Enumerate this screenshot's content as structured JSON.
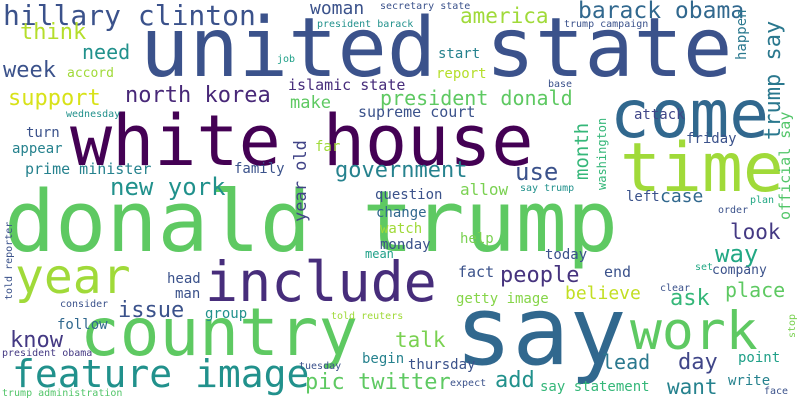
{
  "words": [
    {
      "text": "donald trump",
      "color": "#5ec962"
    },
    {
      "text": "united state",
      "color": "#3b528b"
    },
    {
      "text": "white house",
      "color": "#440154"
    },
    {
      "text": "say",
      "color": "#31688e"
    },
    {
      "text": "country",
      "color": "#5ec962"
    },
    {
      "text": "include",
      "color": "#472d7b"
    },
    {
      "text": "come",
      "color": "#31688e"
    },
    {
      "text": "time",
      "color": "#a0da39"
    },
    {
      "text": "work",
      "color": "#5ec962"
    },
    {
      "text": "year",
      "color": "#a0da39"
    },
    {
      "text": "feature image",
      "color": "#21918c"
    },
    {
      "text": "hillary clinton",
      "color": "#3b528b"
    },
    {
      "text": "barack obama",
      "color": "#31688e"
    },
    {
      "text": "america",
      "color": "#a0da39"
    },
    {
      "text": "woman",
      "color": "#3b528b"
    },
    {
      "text": "think",
      "color": "#b5de2b"
    },
    {
      "text": "need",
      "color": "#21918c"
    },
    {
      "text": "week",
      "color": "#3b528b"
    },
    {
      "text": "support",
      "color": "#d8e219"
    },
    {
      "text": "north korea",
      "color": "#482878"
    },
    {
      "text": "president donald",
      "color": "#5ec962"
    },
    {
      "text": "islamic state",
      "color": "#472d7b"
    },
    {
      "text": "make",
      "color": "#5ec962"
    },
    {
      "text": "supreme court",
      "color": "#3b528b"
    },
    {
      "text": "new york",
      "color": "#21918c"
    },
    {
      "text": "government",
      "color": "#26828e"
    },
    {
      "text": "use",
      "color": "#3b528b"
    },
    {
      "text": "month",
      "color": "#35b779"
    },
    {
      "text": "year old",
      "color": "#414487"
    },
    {
      "text": "prime minister",
      "color": "#26828e"
    },
    {
      "text": "people",
      "color": "#46337e"
    },
    {
      "text": "ask",
      "color": "#35b779"
    },
    {
      "text": "place",
      "color": "#5ec962"
    },
    {
      "text": "look",
      "color": "#443983"
    },
    {
      "text": "way",
      "color": "#22a884"
    },
    {
      "text": "case",
      "color": "#31688e"
    },
    {
      "text": "issue",
      "color": "#3b528b"
    },
    {
      "text": "believe",
      "color": "#c2df23"
    },
    {
      "text": "know",
      "color": "#443983"
    },
    {
      "text": "talk",
      "color": "#7ad151"
    },
    {
      "text": "pic twitter",
      "color": "#5ec962"
    },
    {
      "text": "add",
      "color": "#21918c"
    },
    {
      "text": "want",
      "color": "#26828e"
    },
    {
      "text": "day",
      "color": "#404688"
    },
    {
      "text": "lead",
      "color": "#2a788e"
    },
    {
      "text": "trump say",
      "color": "#2a788e"
    },
    {
      "text": "official say",
      "color": "#52c569"
    },
    {
      "text": "follow",
      "color": "#31688e"
    },
    {
      "text": "fact",
      "color": "#3b528b"
    },
    {
      "text": "end",
      "color": "#3b528b"
    },
    {
      "text": "head",
      "color": "#3b528b"
    },
    {
      "text": "man",
      "color": "#3b528b"
    },
    {
      "text": "group",
      "color": "#21918c"
    },
    {
      "text": "getty image",
      "color": "#86d549"
    },
    {
      "text": "company",
      "color": "#3b528b"
    },
    {
      "text": "point",
      "color": "#1fa088"
    },
    {
      "text": "write",
      "color": "#26828e"
    },
    {
      "text": "thursday",
      "color": "#3b528b"
    },
    {
      "text": "begin",
      "color": "#26828e"
    },
    {
      "text": "say statement",
      "color": "#35b779"
    },
    {
      "text": "friday",
      "color": "#3b528b"
    },
    {
      "text": "left",
      "color": "#3b528b"
    },
    {
      "text": "attack",
      "color": "#404688"
    },
    {
      "text": "happen",
      "color": "#2a788e"
    },
    {
      "text": "start",
      "color": "#26828e"
    },
    {
      "text": "report",
      "color": "#b5de2b"
    },
    {
      "text": "accord",
      "color": "#a0da39"
    },
    {
      "text": "job",
      "color": "#1fa088"
    },
    {
      "text": "turn",
      "color": "#3b528b"
    },
    {
      "text": "appear",
      "color": "#26828e"
    },
    {
      "text": "far",
      "color": "#a0da39"
    },
    {
      "text": "family",
      "color": "#3b528b"
    },
    {
      "text": "question",
      "color": "#3b528b"
    },
    {
      "text": "allow",
      "color": "#7ad151"
    },
    {
      "text": "change",
      "color": "#31688e"
    },
    {
      "text": "watch",
      "color": "#a0da39"
    },
    {
      "text": "monday",
      "color": "#3b528b"
    },
    {
      "text": "mean",
      "color": "#1fa088"
    },
    {
      "text": "help",
      "color": "#7ad151"
    },
    {
      "text": "today",
      "color": "#3b528b"
    },
    {
      "text": "washington",
      "color": "#35b779"
    },
    {
      "text": "consider",
      "color": "#3b528b"
    },
    {
      "text": "told reuters",
      "color": "#a0da39"
    },
    {
      "text": "president obama",
      "color": "#443983"
    },
    {
      "text": "tuesday",
      "color": "#3b528b"
    },
    {
      "text": "expect",
      "color": "#3b528b"
    },
    {
      "text": "face",
      "color": "#3b528b"
    },
    {
      "text": "clear",
      "color": "#3b528b"
    },
    {
      "text": "order",
      "color": "#3b528b"
    },
    {
      "text": "plan",
      "color": "#22a884"
    },
    {
      "text": "set",
      "color": "#22a884"
    },
    {
      "text": "stop",
      "color": "#7ad151"
    },
    {
      "text": "base",
      "color": "#3b528b"
    },
    {
      "text": "say trump",
      "color": "#21918c"
    },
    {
      "text": "wednesday",
      "color": "#21918c"
    },
    {
      "text": "president barack",
      "color": "#21918c"
    },
    {
      "text": "secretary state",
      "color": "#3b528b"
    },
    {
      "text": "trump campaign",
      "color": "#3b528b"
    },
    {
      "text": "told reporter",
      "color": "#3b528b"
    },
    {
      "text": "trump administration",
      "color": "#52c569"
    }
  ]
}
